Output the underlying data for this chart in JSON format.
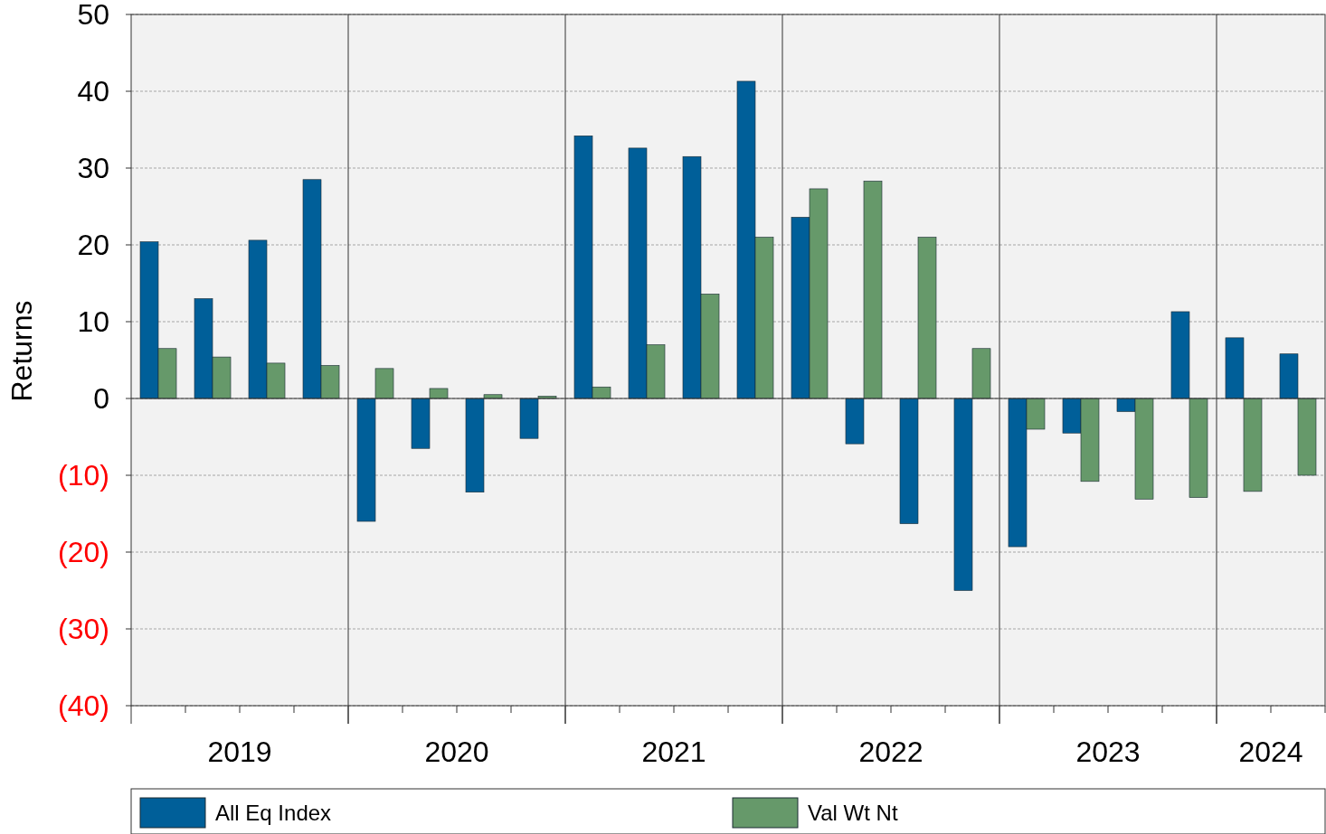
{
  "chart_data": {
    "type": "bar",
    "ylabel": "Returns",
    "categories": [
      null,
      null,
      null,
      null,
      null,
      null,
      null,
      null,
      null,
      null,
      null,
      null,
      null,
      null,
      null,
      null,
      null,
      null,
      null,
      null,
      null,
      null
    ],
    "series": [
      {
        "name": "All Eq Index",
        "color": "#005f99",
        "values": [
          20.4,
          13.0,
          20.6,
          28.5,
          -16.0,
          -6.5,
          -12.2,
          -5.2,
          34.2,
          32.6,
          31.5,
          41.3,
          23.6,
          -5.9,
          -16.3,
          -25.0,
          -19.3,
          -4.5,
          -1.7,
          11.3,
          7.9,
          5.8
        ]
      },
      {
        "name": "Val Wt Nt",
        "color": "#66996a",
        "values": [
          6.5,
          5.4,
          4.6,
          4.3,
          3.9,
          1.3,
          0.5,
          0.3,
          1.5,
          7.0,
          13.6,
          21.0,
          27.3,
          28.3,
          21.0,
          6.5,
          -4.0,
          -10.8,
          -13.1,
          -12.9,
          -12.1,
          -10.0
        ]
      }
    ],
    "ylim": [
      -40,
      50
    ],
    "yticks": [
      {
        "value": -40,
        "label": "(40)"
      },
      {
        "value": -30,
        "label": "(30)"
      },
      {
        "value": -20,
        "label": "(20)"
      },
      {
        "value": -10,
        "label": "(10)"
      },
      0,
      10,
      20,
      30,
      40,
      50
    ],
    "annotations": [
      "2019",
      "2020",
      "2021",
      "2022",
      "2023",
      "2024"
    ],
    "grid": "y",
    "legend": "bottom"
  }
}
